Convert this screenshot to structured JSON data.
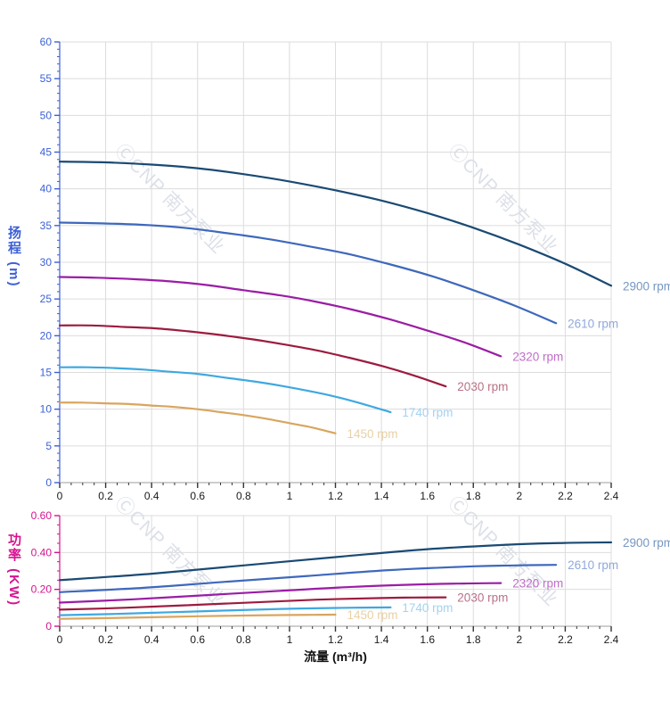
{
  "watermark": {
    "text": "ⒸCNP 南方泵业",
    "color": "rgba(148,162,186,0.33)"
  },
  "chart_data": [
    {
      "type": "line",
      "title": "",
      "xlabel": "",
      "ylabel": "扬程 (m)",
      "xlim": [
        0,
        2.4
      ],
      "ylim": [
        0,
        60
      ],
      "x_major_step": 0.2,
      "x_minor_step": 0.05,
      "y_major_step": 5,
      "y_minor_step": 1,
      "y_decimals": 0,
      "grid": true,
      "legend_position": "line-end-labels",
      "axis_color": "#3c60d6",
      "x_axis_color": "#b0b0b0",
      "x_tick_color": "#333333",
      "x_tick_label_color": "#1a1a1a",
      "grid_color": "#dcdcdc",
      "series": [
        {
          "name": "2900 rpm",
          "color": "#1a4a73",
          "label_color": "#7597c1",
          "x": [
            0,
            0.2,
            0.4,
            0.6,
            0.8,
            1.0,
            1.2,
            1.4,
            1.6,
            1.8,
            2.0,
            2.2,
            2.4
          ],
          "y": [
            43.7,
            43.6,
            43.3,
            42.8,
            42.0,
            41.0,
            39.8,
            38.4,
            36.7,
            34.7,
            32.4,
            29.8,
            26.8
          ]
        },
        {
          "name": "2610 rpm",
          "color": "#3e68bc",
          "label_color": "#8fa9dc",
          "x": [
            0,
            0.18,
            0.36,
            0.54,
            0.72,
            0.9,
            1.08,
            1.26,
            1.44,
            1.62,
            1.8,
            1.98,
            2.16
          ],
          "y": [
            35.4,
            35.3,
            35.1,
            34.7,
            34.0,
            33.2,
            32.2,
            31.1,
            29.7,
            28.1,
            26.2,
            24.1,
            21.7
          ]
        },
        {
          "name": "2320 rpm",
          "color": "#9a1da5",
          "label_color": "#bf6ec7",
          "x": [
            0,
            0.16,
            0.32,
            0.48,
            0.64,
            0.8,
            0.96,
            1.12,
            1.28,
            1.44,
            1.6,
            1.76,
            1.92
          ],
          "y": [
            28.0,
            27.9,
            27.7,
            27.4,
            26.9,
            26.2,
            25.5,
            24.6,
            23.5,
            22.2,
            20.7,
            19.1,
            17.2
          ]
        },
        {
          "name": "2030 rpm",
          "color": "#9c1c3f",
          "label_color": "#b87286",
          "x": [
            0,
            0.14,
            0.28,
            0.42,
            0.56,
            0.7,
            0.84,
            0.98,
            1.12,
            1.26,
            1.4,
            1.54,
            1.68
          ],
          "y": [
            21.4,
            21.4,
            21.2,
            21.0,
            20.6,
            20.1,
            19.5,
            18.8,
            18.0,
            17.0,
            15.9,
            14.6,
            13.1
          ]
        },
        {
          "name": "1740 rpm",
          "color": "#3fa8e0",
          "label_color": "#a3d2ef",
          "x": [
            0,
            0.12,
            0.24,
            0.36,
            0.48,
            0.6,
            0.72,
            0.84,
            0.96,
            1.08,
            1.2,
            1.32,
            1.44
          ],
          "y": [
            15.7,
            15.7,
            15.6,
            15.4,
            15.1,
            14.8,
            14.3,
            13.8,
            13.2,
            12.5,
            11.7,
            10.7,
            9.6
          ]
        },
        {
          "name": "1450 rpm",
          "color": "#d9a55f",
          "label_color": "#e9d0a6",
          "x": [
            0,
            0.1,
            0.2,
            0.3,
            0.4,
            0.5,
            0.6,
            0.7,
            0.8,
            0.9,
            1.0,
            1.1,
            1.2
          ],
          "y": [
            10.9,
            10.9,
            10.8,
            10.7,
            10.5,
            10.3,
            10.0,
            9.6,
            9.2,
            8.7,
            8.1,
            7.5,
            6.7
          ]
        }
      ]
    },
    {
      "type": "line",
      "title": "",
      "xlabel": "流量 (m³/h)",
      "ylabel": "功率 (KW)",
      "xlim": [
        0,
        2.4
      ],
      "ylim": [
        0,
        0.6
      ],
      "x_major_step": 0.2,
      "x_minor_step": 0.05,
      "y_major_step": 0.2,
      "y_minor_step": 0.05,
      "y_decimals": 2,
      "grid": true,
      "legend_position": "line-end-labels",
      "axis_color": "#d6138f",
      "x_axis_color": "#b0b0b0",
      "x_tick_color": "#333333",
      "x_tick_label_color": "#1a1a1a",
      "grid_color": "#dcdcdc",
      "series": [
        {
          "name": "2900 rpm",
          "color": "#1a4a73",
          "label_color": "#7597c1",
          "x": [
            0,
            0.4,
            0.8,
            1.2,
            1.6,
            2.0,
            2.2,
            2.4
          ],
          "y": [
            0.25,
            0.285,
            0.33,
            0.375,
            0.418,
            0.445,
            0.452,
            0.455
          ]
        },
        {
          "name": "2610 rpm",
          "color": "#3e68bc",
          "label_color": "#8fa9dc",
          "x": [
            0,
            0.36,
            0.72,
            1.08,
            1.44,
            1.8,
            1.98,
            2.16
          ],
          "y": [
            0.185,
            0.208,
            0.241,
            0.273,
            0.305,
            0.325,
            0.33,
            0.333
          ]
        },
        {
          "name": "2320 rpm",
          "color": "#9a1da5",
          "label_color": "#bf6ec7",
          "x": [
            0,
            0.32,
            0.64,
            0.96,
            1.28,
            1.6,
            1.76,
            1.92
          ],
          "y": [
            0.128,
            0.146,
            0.169,
            0.192,
            0.214,
            0.228,
            0.232,
            0.234
          ]
        },
        {
          "name": "2030 rpm",
          "color": "#9c1c3f",
          "label_color": "#b87286",
          "x": [
            0,
            0.28,
            0.56,
            0.84,
            1.12,
            1.4,
            1.54,
            1.68
          ],
          "y": [
            0.09,
            0.1,
            0.114,
            0.129,
            0.144,
            0.153,
            0.156,
            0.157
          ]
        },
        {
          "name": "1740 rpm",
          "color": "#3fa8e0",
          "label_color": "#a3d2ef",
          "x": [
            0,
            0.24,
            0.48,
            0.72,
            0.96,
            1.2,
            1.32,
            1.44
          ],
          "y": [
            0.06,
            0.067,
            0.076,
            0.085,
            0.094,
            0.099,
            0.101,
            0.102
          ]
        },
        {
          "name": "1450 rpm",
          "color": "#d9a55f",
          "label_color": "#e9d0a6",
          "x": [
            0,
            0.2,
            0.4,
            0.6,
            0.8,
            1.0,
            1.1,
            1.2
          ],
          "y": [
            0.04,
            0.044,
            0.049,
            0.054,
            0.058,
            0.061,
            0.062,
            0.063
          ]
        }
      ]
    }
  ]
}
